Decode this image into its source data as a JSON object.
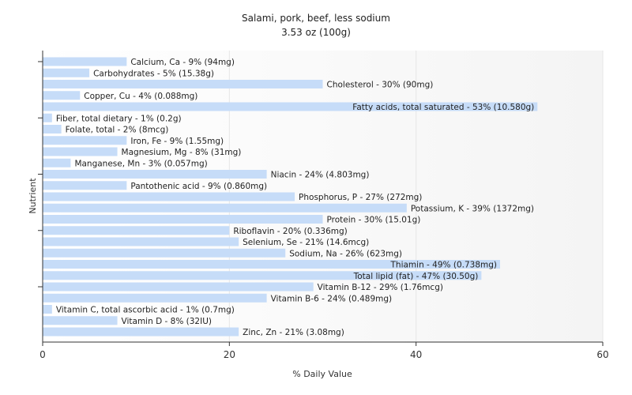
{
  "chart_data": {
    "type": "bar",
    "orientation": "horizontal",
    "title": "Salami, pork, beef, less sodium",
    "subtitle": "3.53 oz (100g)",
    "xlabel": "% Daily Value",
    "ylabel": "Nutrient",
    "xlim": [
      0,
      60
    ],
    "xticks": [
      0,
      20,
      40,
      60
    ],
    "grid": true,
    "colors": {
      "bar": "#c6dcf8",
      "grid": "#e6e6e6",
      "axis": "#333333",
      "plot_bg_end": "#f4f4f4"
    },
    "bars": [
      {
        "label": "Calcium, Ca - 9% (94mg)",
        "value": 9
      },
      {
        "label": "Carbohydrates - 5% (15.38g)",
        "value": 5
      },
      {
        "label": "Cholesterol - 30% (90mg)",
        "value": 30
      },
      {
        "label": "Copper, Cu - 4% (0.088mg)",
        "value": 4
      },
      {
        "label": "Fatty acids, total saturated - 53% (10.580g)",
        "value": 53
      },
      {
        "label": "Fiber, total dietary - 1% (0.2g)",
        "value": 1
      },
      {
        "label": "Folate, total - 2% (8mcg)",
        "value": 2
      },
      {
        "label": "Iron, Fe - 9% (1.55mg)",
        "value": 9
      },
      {
        "label": "Magnesium, Mg - 8% (31mg)",
        "value": 8
      },
      {
        "label": "Manganese, Mn - 3% (0.057mg)",
        "value": 3
      },
      {
        "label": "Niacin - 24% (4.803mg)",
        "value": 24
      },
      {
        "label": "Pantothenic acid - 9% (0.860mg)",
        "value": 9
      },
      {
        "label": "Phosphorus, P - 27% (272mg)",
        "value": 27
      },
      {
        "label": "Potassium, K - 39% (1372mg)",
        "value": 39
      },
      {
        "label": "Protein - 30% (15.01g)",
        "value": 30
      },
      {
        "label": "Riboflavin - 20% (0.336mg)",
        "value": 20
      },
      {
        "label": "Selenium, Se - 21% (14.6mcg)",
        "value": 21
      },
      {
        "label": "Sodium, Na - 26% (623mg)",
        "value": 26
      },
      {
        "label": "Thiamin - 49% (0.738mg)",
        "value": 49
      },
      {
        "label": "Total lipid (fat) - 47% (30.50g)",
        "value": 47
      },
      {
        "label": "Vitamin B-12 - 29% (1.76mcg)",
        "value": 29
      },
      {
        "label": "Vitamin B-6 - 24% (0.489mg)",
        "value": 24
      },
      {
        "label": "Vitamin C, total ascorbic acid - 1% (0.7mg)",
        "value": 1
      },
      {
        "label": "Vitamin D - 8% (32IU)",
        "value": 8
      },
      {
        "label": "Zinc, Zn - 21% (3.08mg)",
        "value": 21
      }
    ]
  }
}
